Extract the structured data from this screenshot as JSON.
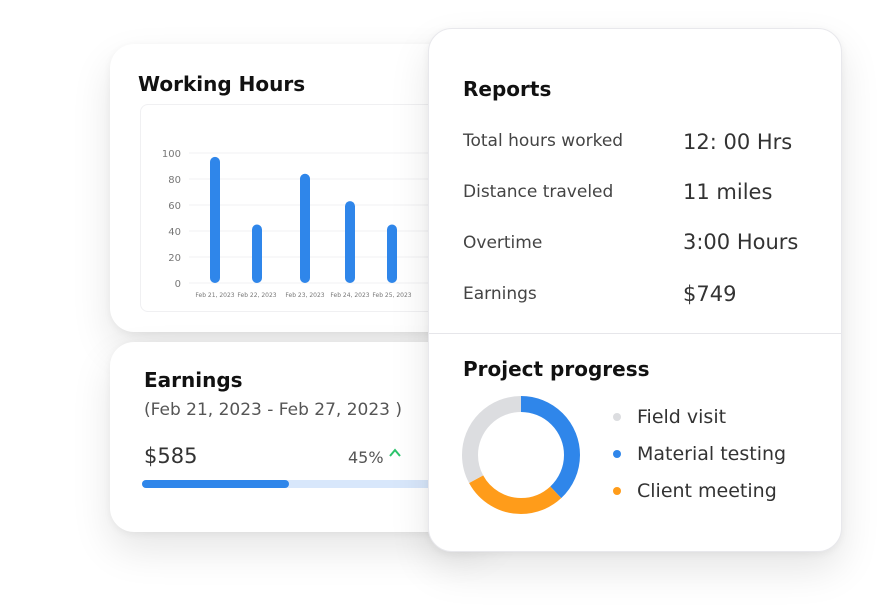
{
  "working_hours": {
    "title": "Working Hours"
  },
  "chart_data": {
    "type": "bar",
    "categories": [
      "Feb 21, 2023",
      "Feb 22, 2023",
      "Feb 23, 2023",
      "Feb 24, 2023",
      "Feb 25, 2023"
    ],
    "values": [
      97,
      45,
      84,
      63,
      45
    ],
    "yticks": [
      0,
      20,
      40,
      60,
      80,
      100
    ],
    "ylim": [
      0,
      100
    ],
    "bar_color": "#2f86ea",
    "grid": true
  },
  "earnings": {
    "title": "Earnings",
    "range": "(Feb 21, 2023 - Feb 27, 2023 )",
    "amount": "$585",
    "percent": "45%",
    "progress": 0.49,
    "up_icon": "chevron-up-icon"
  },
  "reports": {
    "title": "Reports",
    "rows": [
      {
        "label": "Total hours worked",
        "value": "12: 00 Hrs"
      },
      {
        "label": "Distance traveled",
        "value": "11 miles"
      },
      {
        "label": "Overtime",
        "value": "3:00 Hours"
      },
      {
        "label": "Earnings",
        "value": "$749"
      }
    ]
  },
  "project_progress": {
    "title": "Project progress",
    "items": [
      {
        "label": "Field visit",
        "color": "#dcdde0",
        "share": 0.33
      },
      {
        "label": "Material testing",
        "color": "#2f86ea",
        "share": 0.38
      },
      {
        "label": "Client meeting",
        "color": "#ff9c1a",
        "share": 0.29
      }
    ]
  }
}
